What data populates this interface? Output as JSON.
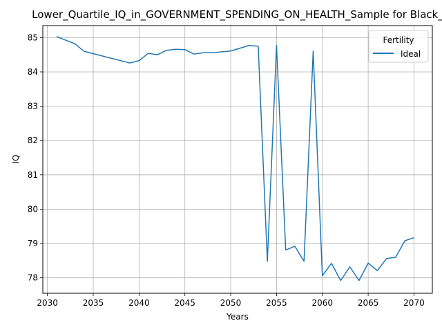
{
  "chart_data": {
    "type": "line",
    "title": "Lower_Quartile_IQ_in_GOVERNMENT_SPENDING_ON_HEALTH_Sample for Black_",
    "xlabel": "Years",
    "ylabel": "IQ",
    "xlim": [
      2029.5,
      2072
    ],
    "ylim": [
      77.55,
      85.35
    ],
    "xticks": [
      2030,
      2035,
      2040,
      2045,
      2050,
      2055,
      2060,
      2065,
      2070
    ],
    "yticks": [
      78,
      79,
      80,
      81,
      82,
      83,
      84,
      85
    ],
    "grid": true,
    "legend": {
      "title": "Fertility",
      "placement": "top-right"
    },
    "series": [
      {
        "name": "Ideal",
        "color": "#1f77b4",
        "x": [
          2031,
          2033,
          2034,
          2039,
          2040,
          2041,
          2042,
          2043,
          2044,
          2045,
          2046,
          2047,
          2048,
          2050,
          2052,
          2053,
          2054,
          2055,
          2056,
          2057,
          2058,
          2059,
          2060,
          2061,
          2062,
          2063,
          2064,
          2065,
          2066,
          2067,
          2068,
          2069,
          2070
        ],
        "y": [
          85.03,
          84.82,
          84.6,
          84.26,
          84.33,
          84.54,
          84.5,
          84.63,
          84.66,
          84.65,
          84.52,
          84.56,
          84.56,
          84.61,
          84.77,
          84.75,
          78.48,
          84.77,
          78.81,
          78.92,
          78.48,
          84.61,
          78.06,
          78.42,
          77.92,
          78.32,
          77.92,
          78.43,
          78.21,
          78.56,
          78.6,
          79.08,
          79.17
        ]
      }
    ]
  }
}
